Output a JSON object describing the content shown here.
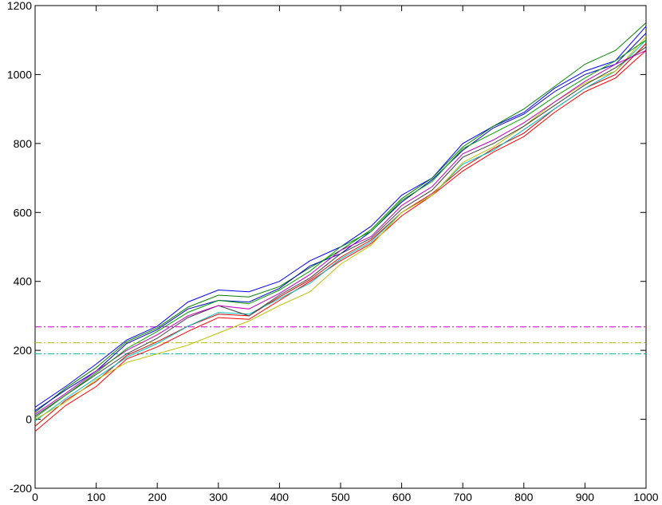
{
  "chart_data": {
    "type": "line",
    "x": [
      0,
      50,
      100,
      150,
      200,
      250,
      300,
      350,
      400,
      450,
      500,
      550,
      600,
      650,
      700,
      750,
      800,
      850,
      900,
      950,
      1000
    ],
    "series": [
      {
        "color": "#0000ff",
        "values": [
          35,
          95,
          160,
          230,
          270,
          340,
          375,
          370,
          400,
          460,
          500,
          560,
          650,
          700,
          800,
          850,
          890,
          960,
          1010,
          1040,
          1140
        ]
      },
      {
        "color": "#008000",
        "values": [
          20,
          90,
          150,
          225,
          265,
          325,
          360,
          355,
          385,
          440,
          490,
          550,
          640,
          700,
          790,
          850,
          900,
          965,
          1030,
          1070,
          1150
        ]
      },
      {
        "color": "#0000cc",
        "values": [
          25,
          85,
          140,
          220,
          260,
          320,
          345,
          340,
          380,
          445,
          480,
          545,
          630,
          695,
          780,
          845,
          885,
          950,
          1000,
          1030,
          1120
        ]
      },
      {
        "color": "#ff0000",
        "values": [
          -35,
          40,
          95,
          175,
          210,
          255,
          295,
          290,
          345,
          400,
          460,
          510,
          590,
          650,
          720,
          775,
          820,
          890,
          950,
          990,
          1070
        ]
      },
      {
        "color": "#dd0000",
        "values": [
          -20,
          55,
          110,
          185,
          225,
          270,
          305,
          300,
          355,
          405,
          470,
          520,
          600,
          655,
          730,
          785,
          830,
          900,
          960,
          1000,
          1090
        ]
      },
      {
        "color": "#00bfbf",
        "values": [
          -5,
          60,
          120,
          180,
          220,
          270,
          310,
          305,
          350,
          395,
          465,
          515,
          600,
          650,
          740,
          780,
          840,
          900,
          960,
          1010,
          1100
        ]
      },
      {
        "color": "#bfbf00",
        "values": [
          0,
          50,
          115,
          165,
          190,
          215,
          250,
          285,
          330,
          370,
          450,
          505,
          600,
          650,
          745,
          790,
          850,
          920,
          975,
          1010,
          1110
        ]
      },
      {
        "color": "#404040",
        "values": [
          10,
          70,
          130,
          190,
          235,
          295,
          330,
          300,
          360,
          410,
          480,
          525,
          610,
          665,
          760,
          800,
          850,
          910,
          970,
          1020,
          1080
        ]
      },
      {
        "color": "#bf00bf",
        "values": [
          15,
          75,
          140,
          200,
          245,
          300,
          330,
          320,
          365,
          420,
          490,
          530,
          620,
          675,
          770,
          810,
          860,
          920,
          980,
          1030,
          1070
        ]
      },
      {
        "color": "#00a000",
        "values": [
          5,
          70,
          135,
          205,
          255,
          310,
          345,
          335,
          375,
          430,
          500,
          545,
          635,
          690,
          785,
          830,
          875,
          935,
          990,
          1040,
          1100
        ]
      }
    ],
    "hlines": [
      {
        "value": 268,
        "color": "#bf00bf"
      },
      {
        "value": 222,
        "color": "#bfbf00"
      },
      {
        "value": 190,
        "color": "#00bfbf"
      }
    ],
    "xlim": [
      0,
      1000
    ],
    "xticks": [
      0,
      100,
      200,
      300,
      400,
      500,
      600,
      700,
      800,
      900,
      1000
    ],
    "ylim": [
      -200,
      1200
    ],
    "yticks": [
      -200,
      0,
      200,
      400,
      600,
      800,
      1000,
      1200
    ]
  }
}
